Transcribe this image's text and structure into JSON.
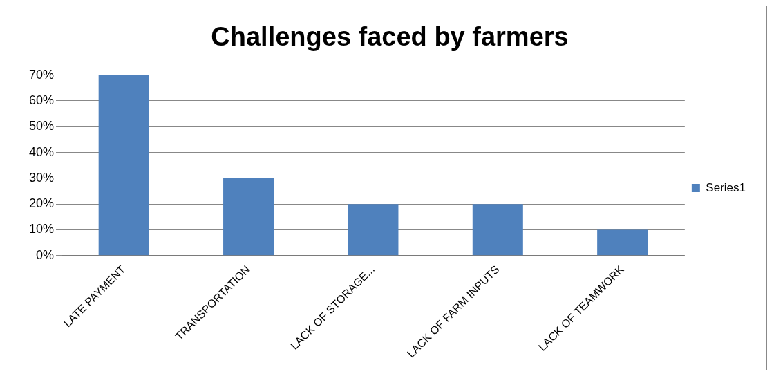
{
  "chart_data": {
    "type": "bar",
    "title": "Challenges faced by farmers",
    "categories": [
      "LATE PAYMENT",
      "TRANSPORTATION",
      "LACK OF STORAGE...",
      "LACK OF FARM INPUTS",
      "LACK OF TEAMWORK"
    ],
    "series": [
      {
        "name": "Series1",
        "color": "#4f81bd",
        "values": [
          70,
          30,
          20,
          20,
          10
        ]
      }
    ],
    "ylim": [
      0,
      70
    ],
    "yticks": [
      {
        "value": 0,
        "label": "0%"
      },
      {
        "value": 10,
        "label": "10%"
      },
      {
        "value": 20,
        "label": "20%"
      },
      {
        "value": 30,
        "label": "30%"
      },
      {
        "value": 40,
        "label": "40%"
      },
      {
        "value": 50,
        "label": "50%"
      },
      {
        "value": 60,
        "label": "60%"
      },
      {
        "value": 70,
        "label": "70%"
      }
    ],
    "grid": "y",
    "legend": "right"
  }
}
